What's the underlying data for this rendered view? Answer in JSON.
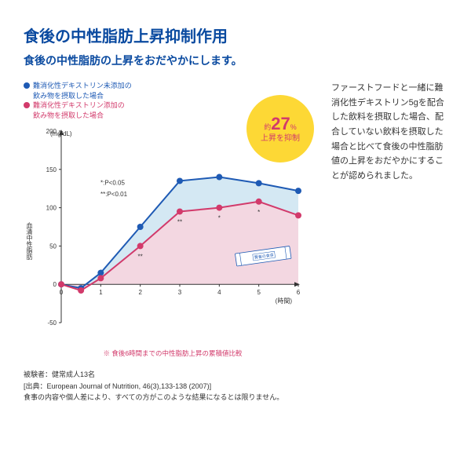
{
  "colors": {
    "title": "#0a4aa0",
    "subtitle": "#0a4aa0",
    "blue": "#1e5ab4",
    "red": "#d23a6b",
    "blue_fill": "#cfe6f2",
    "red_fill": "#f4d6df",
    "badge_bg": "#fdd835",
    "badge_text": "#d23a6b",
    "axis": "#333333",
    "footnote": "#d23a6b"
  },
  "title": "食後の中性脂肪上昇抑制作用",
  "subtitle": "食後の中性脂肪の上昇をおだやかにします。",
  "legend": {
    "blue": "難消化性デキストリン未添加の\n飲み物を摂取した場合",
    "red": "難消化性デキストリン添加の\n飲み物を摂取した場合"
  },
  "badge": {
    "line1": "約",
    "line2": "27",
    "line3": "%",
    "line4": "上昇を抑制"
  },
  "chart": {
    "type": "line",
    "y_unit": "(mg/dL)",
    "x_unit": "(時間)",
    "y_axis_label": "血清中性脂肪",
    "xlim": [
      0,
      6
    ],
    "ylim": [
      -50,
      200
    ],
    "xticks": [
      0,
      1,
      2,
      3,
      4,
      5,
      6
    ],
    "yticks": [
      -50,
      0,
      50,
      100,
      150,
      200
    ],
    "pvals": [
      "*:P<0.05",
      "**:P<0.01"
    ],
    "series": [
      {
        "name": "blue",
        "x": [
          0,
          0.5,
          1,
          2,
          3,
          4,
          5,
          6
        ],
        "y": [
          0,
          -5,
          15,
          75,
          135,
          140,
          132,
          122
        ],
        "markers": [
          "",
          "",
          "",
          "",
          "",
          "",
          "",
          ""
        ]
      },
      {
        "name": "red",
        "x": [
          0,
          0.5,
          1,
          2,
          3,
          4,
          5,
          6
        ],
        "y": [
          0,
          -8,
          8,
          50,
          95,
          100,
          108,
          90
        ],
        "markers": [
          "",
          "",
          "",
          "**",
          "**",
          "*",
          "*",
          ""
        ]
      }
    ],
    "footnote": "※ 食後6時間までの中性脂肪上昇の累積値比較"
  },
  "sidebar_text": "ファーストフードと一緒に難消化性デキストリン5gを配合した飲料を摂取した場合、配合していない飲料を摂取した場合と比べて食後の中性脂肪値の上昇をおだやかにすることが認められました。",
  "footer": {
    "l1": "被験者：健常成人13名",
    "l2": "[出典：European Journal of Nutrition, 46(3),133-138 (2007)]",
    "l3": "食事の内容や個人差により、すべての方がこのような結果になるとは限りません。"
  }
}
